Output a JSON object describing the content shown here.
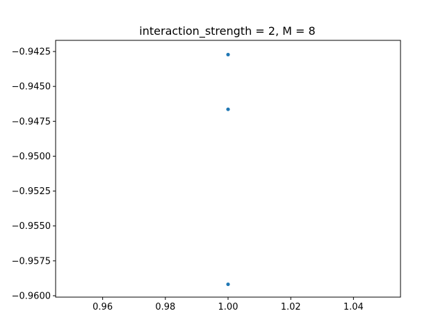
{
  "chart_data": {
    "type": "scatter",
    "title": "interaction_strength = 2, M = 8",
    "xlabel": "",
    "ylabel": "",
    "xlim": [
      0.945,
      1.055
    ],
    "ylim": [
      -0.9601,
      -0.9417
    ],
    "xticks": [
      0.96,
      0.98,
      1.0,
      1.02,
      1.04
    ],
    "xtick_labels": [
      "0.96",
      "0.98",
      "1.00",
      "1.02",
      "1.04"
    ],
    "yticks": [
      -0.9425,
      -0.945,
      -0.9475,
      -0.95,
      -0.9525,
      -0.955,
      -0.9575,
      -0.96
    ],
    "ytick_labels": [
      "−0.9425",
      "−0.9450",
      "−0.9475",
      "−0.9500",
      "−0.9525",
      "−0.9550",
      "−0.9575",
      "−0.9600"
    ],
    "grid": false,
    "series": [
      {
        "color": "#1f77b4",
        "x": [
          1.0,
          1.0,
          1.0
        ],
        "y": [
          -0.94272,
          -0.94664,
          -0.95918
        ]
      }
    ]
  }
}
